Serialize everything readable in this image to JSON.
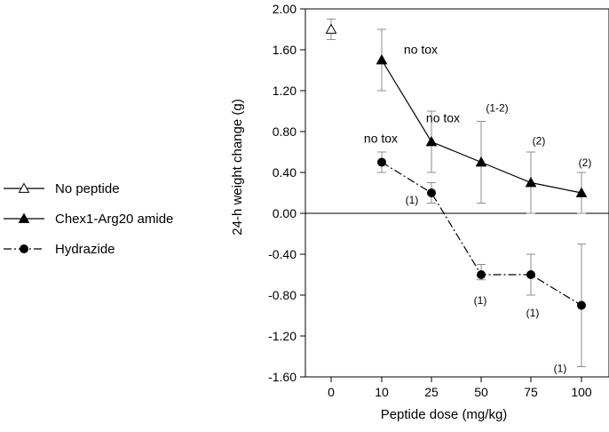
{
  "chart_data": {
    "type": "line",
    "x_categories": [
      "0",
      "10",
      "25",
      "50",
      "75",
      "100"
    ],
    "ylabel": "24-h weight change (g)",
    "xlabel": "Peptide dose (mg/kg)",
    "ylim": [
      -1.6,
      2.0
    ],
    "y_ticks": [
      "2.00",
      "1.60",
      "1.20",
      "0.80",
      "0.40",
      "0.00",
      "-0.40",
      "-0.80",
      "-1.20",
      "-1.60"
    ],
    "zero_line": true,
    "legend_position": "left",
    "series": [
      {
        "name": "No peptide",
        "marker": "open-triangle",
        "line": "solid",
        "points": [
          {
            "x": "0",
            "y": 1.8,
            "err_low": 1.7,
            "err_high": 1.9
          }
        ]
      },
      {
        "name": "Chex1-Arg20 amide",
        "marker": "filled-triangle",
        "line": "solid",
        "points": [
          {
            "x": "10",
            "y": 1.5,
            "err_low": 1.2,
            "err_high": 1.8,
            "label": "no tox"
          },
          {
            "x": "25",
            "y": 0.7,
            "err_low": 0.4,
            "err_high": 1.0,
            "label": "no tox"
          },
          {
            "x": "50",
            "y": 0.5,
            "err_low": 0.1,
            "err_high": 0.9,
            "label": "(1-2)"
          },
          {
            "x": "75",
            "y": 0.3,
            "err_low": 0.0,
            "err_high": 0.6,
            "label": "(2)"
          },
          {
            "x": "100",
            "y": 0.2,
            "err_low": 0.0,
            "err_high": 0.4,
            "label": "(2)"
          }
        ]
      },
      {
        "name": "Hydrazide",
        "marker": "filled-circle",
        "line": "dash-dot",
        "points": [
          {
            "x": "10",
            "y": 0.5,
            "err_low": 0.4,
            "err_high": 0.6,
            "label": "no tox"
          },
          {
            "x": "25",
            "y": 0.2,
            "err_low": 0.1,
            "err_high": 0.3,
            "label": "(1)"
          },
          {
            "x": "50",
            "y": -0.6,
            "err_low": -0.65,
            "err_high": -0.5,
            "label": "(1)"
          },
          {
            "x": "75",
            "y": -0.6,
            "err_low": -0.8,
            "err_high": -0.4,
            "label": "(1)"
          },
          {
            "x": "100",
            "y": -0.9,
            "err_low": -1.5,
            "err_high": -0.3,
            "label": "(1)"
          }
        ]
      }
    ],
    "colors": {
      "line": "#000000",
      "errorbar": "#8c8c8c",
      "axis": "#000000"
    }
  }
}
